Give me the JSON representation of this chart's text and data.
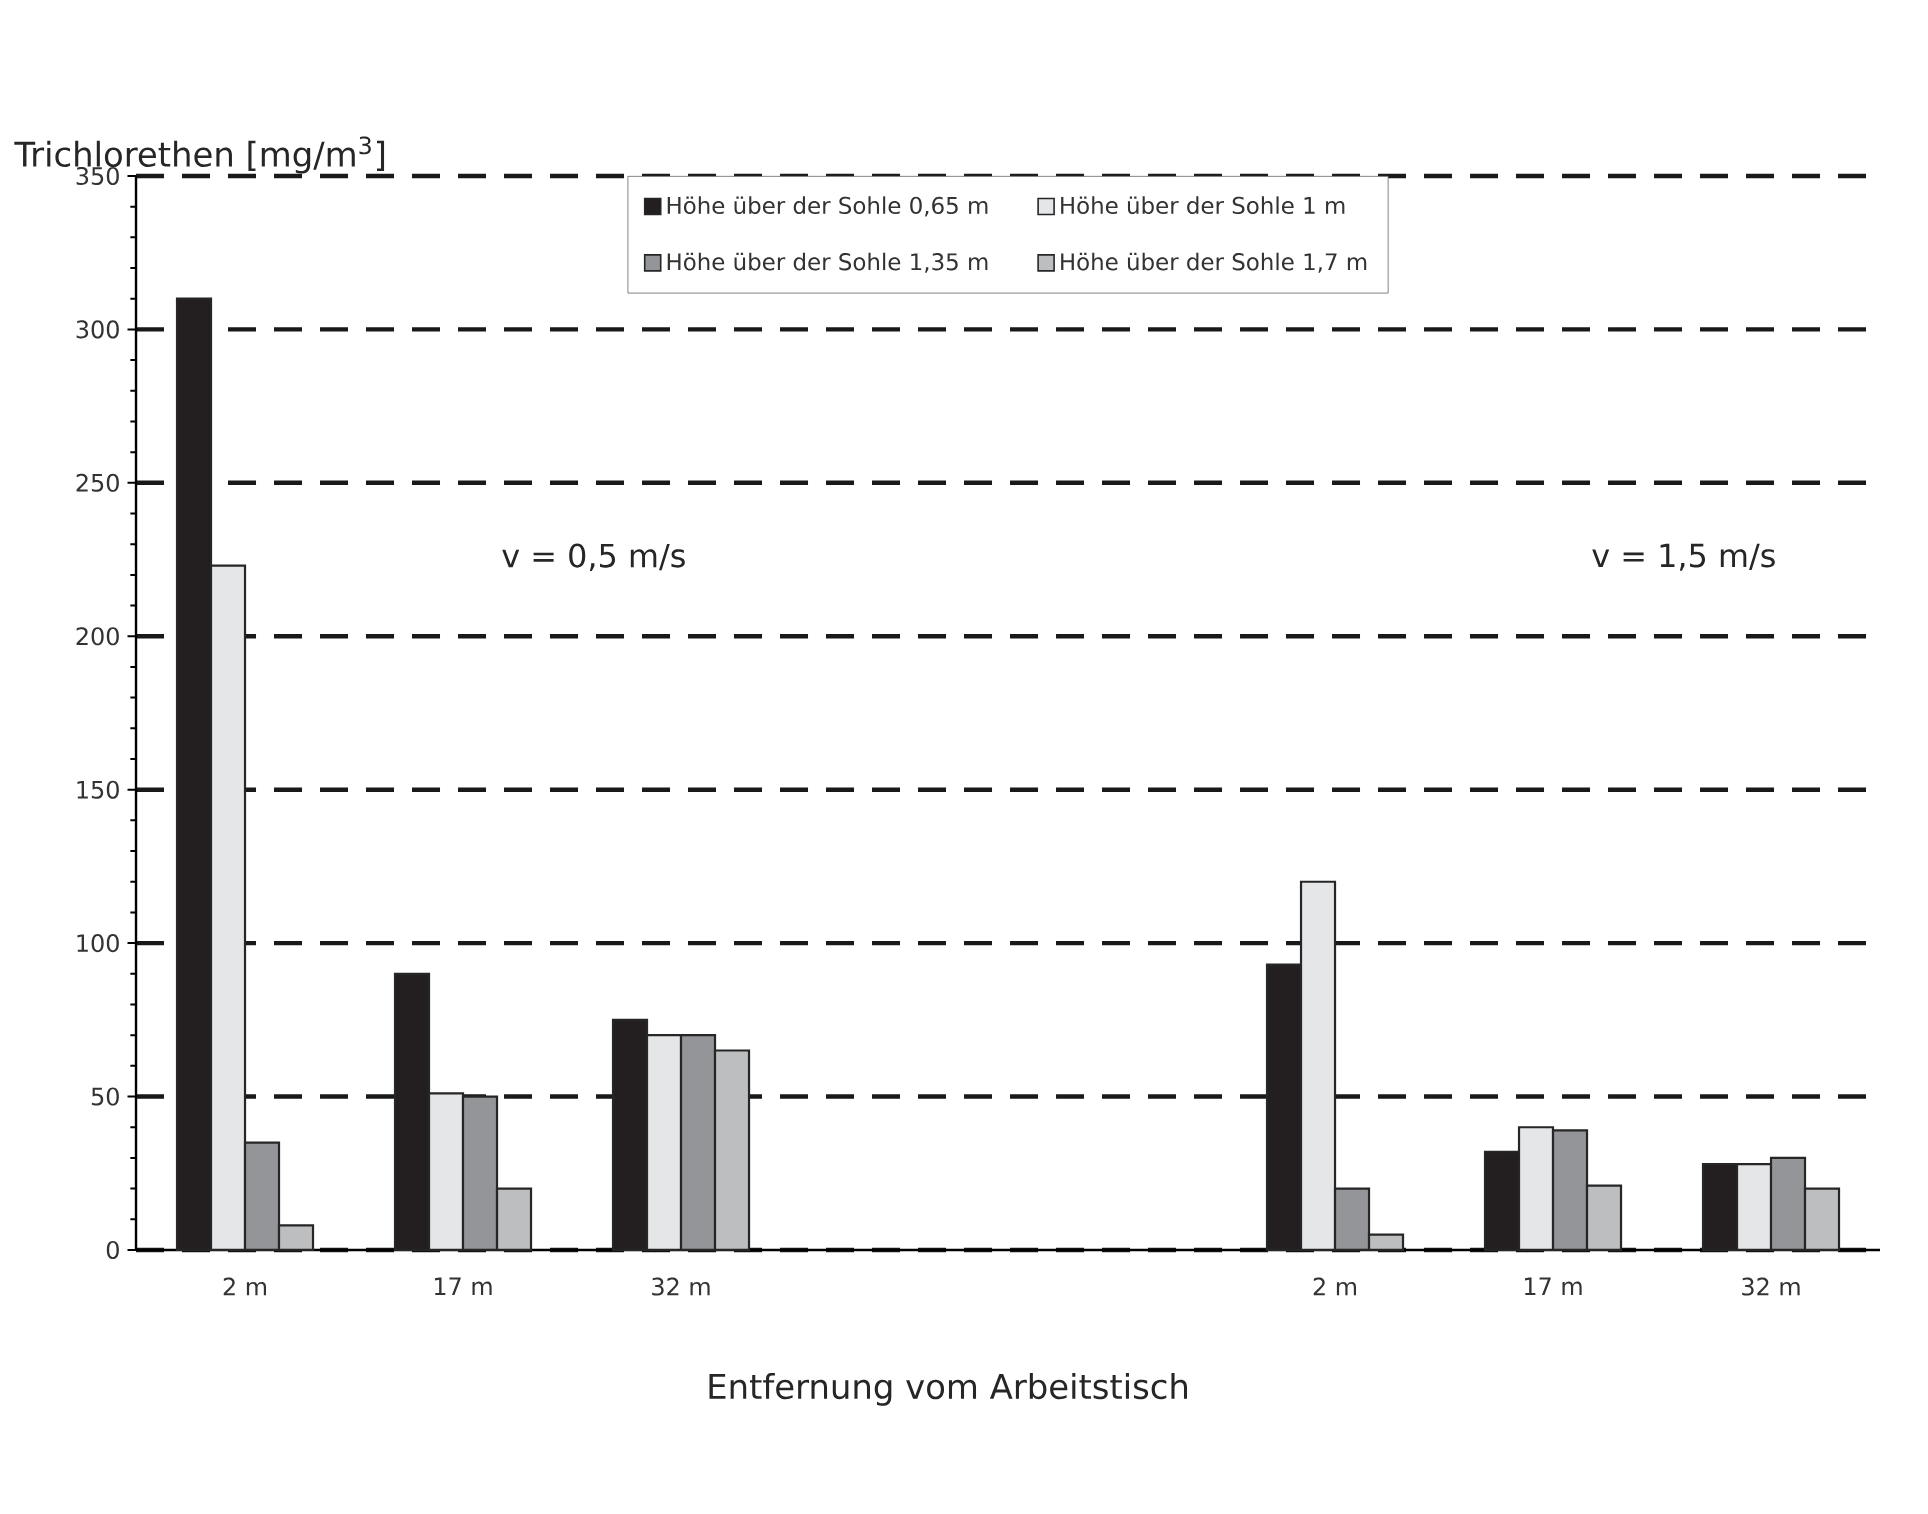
{
  "chart_data": {
    "type": "bar",
    "ylabel": "Trichlorethen [mg/m$^{3}$]",
    "xlabel": "Entfernung vom Arbeitstisch",
    "categories": [
      "2 m",
      "17 m",
      "32 m",
      null,
      null,
      "2 m",
      "17 m",
      "32 m"
    ],
    "series": [
      {
        "name": "Höhe über der Sohle 0,65 m",
        "color": "#231f20",
        "values": [
          310,
          90,
          75,
          null,
          null,
          93,
          32,
          28
        ]
      },
      {
        "name": "Höhe über der Sohle 1 m",
        "color": "#e5e6e8",
        "values": [
          223,
          51,
          70,
          null,
          null,
          120,
          40,
          28
        ]
      },
      {
        "name": "Höhe über der Sohle 1,35 m",
        "color": "#939598",
        "values": [
          35,
          50,
          70,
          null,
          null,
          20,
          39,
          30
        ]
      },
      {
        "name": "Höhe über der Sohle 1,7 m",
        "color": "#bcbec0",
        "values": [
          8,
          20,
          65,
          null,
          null,
          5,
          21,
          20
        ]
      }
    ],
    "ylim": [
      0,
      350
    ],
    "yticks": [
      0,
      50,
      100,
      150,
      200,
      250,
      300,
      350
    ],
    "grid": "y",
    "legend": "top",
    "annotations": [
      "v = 0,5 m/s",
      "v = 1,5 m/s"
    ]
  }
}
